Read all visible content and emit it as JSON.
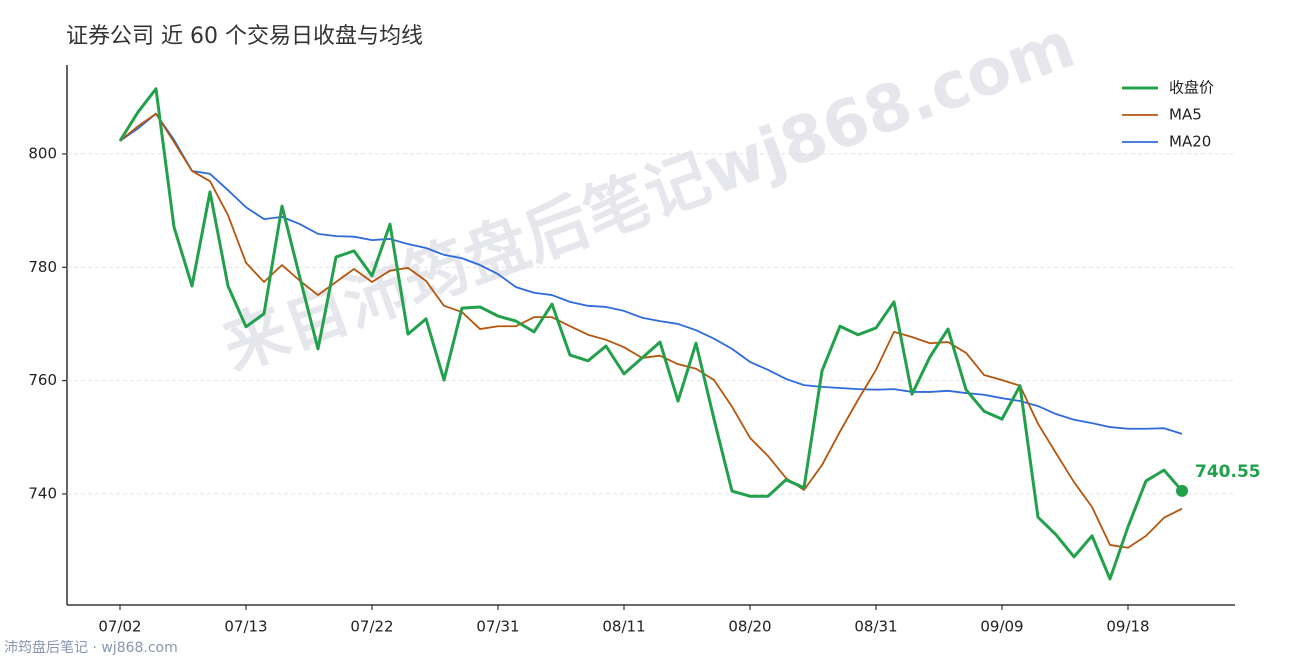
{
  "chart_data": {
    "type": "line",
    "title": "证券公司 近 60 个交易日收盘与均线",
    "watermark": "来自沛筠盘后笔记wj868.com",
    "footer": "沛筠盘后笔记 · wj868.com",
    "categories": [
      "07/02",
      null,
      null,
      null,
      null,
      null,
      null,
      "07/13",
      null,
      null,
      null,
      null,
      null,
      null,
      "07/22",
      null,
      null,
      null,
      null,
      null,
      null,
      "07/31",
      null,
      null,
      null,
      null,
      null,
      null,
      "08/11",
      null,
      null,
      null,
      null,
      null,
      null,
      "08/20",
      null,
      null,
      null,
      null,
      null,
      null,
      "08/31",
      null,
      null,
      null,
      null,
      null,
      null,
      "09/09",
      null,
      null,
      null,
      null,
      null,
      null,
      "09/18",
      null,
      null,
      null
    ],
    "series": [
      {
        "name": "收盘价",
        "color": "#22a04b",
        "width": 3,
        "end_dot": true,
        "values": [
          802.3,
          807.4,
          811.5,
          787.1,
          776.7,
          793.3,
          776.7,
          769.5,
          771.8,
          790.8,
          778.1,
          765.6,
          781.8,
          782.9,
          778.5,
          787.6,
          768.2,
          770.9,
          760.1,
          772.8,
          773.0,
          771.4,
          770.5,
          768.6,
          773.5,
          764.5,
          763.5,
          766.1,
          761.2,
          764.0,
          766.8,
          756.4,
          766.6,
          753.2,
          740.5,
          739.6,
          739.6,
          742.5,
          741.1,
          761.7,
          769.6,
          768.1,
          769.3,
          773.9,
          757.6,
          764.2,
          769.1,
          758.4,
          754.6,
          753.2,
          759.1,
          735.9,
          732.8,
          728.9,
          732.6,
          725.0,
          734.2,
          742.3,
          744.2,
          740.55
        ]
      },
      {
        "name": "MA5",
        "color": "#b5560f",
        "width": 1.8,
        "values": [
          802.3,
          804.9,
          807.1,
          802.1,
          797.0,
          795.2,
          789.2,
          780.8,
          777.4,
          780.4,
          777.6,
          775.1,
          777.4,
          779.7,
          777.4,
          779.4,
          779.9,
          777.6,
          773.2,
          772.1,
          769.1,
          769.6,
          769.6,
          771.2,
          771.2,
          769.6,
          768.1,
          767.2,
          765.9,
          764.0,
          764.4,
          762.9,
          762.1,
          760.1,
          755.4,
          749.9,
          746.7,
          742.8,
          740.7,
          745.1,
          751.0,
          756.6,
          761.9,
          768.6,
          767.7,
          766.6,
          766.8,
          764.9,
          761.0,
          760.1,
          759.1,
          752.4,
          747.2,
          742.1,
          737.7,
          731.0,
          730.5,
          732.6,
          735.8,
          737.4
        ]
      },
      {
        "name": "MA20",
        "color": "#2f6bdb",
        "width": 1.8,
        "values": [
          802.3,
          804.5,
          807.1,
          802.5,
          797.0,
          796.5,
          793.6,
          790.6,
          788.5,
          788.9,
          787.6,
          785.9,
          785.5,
          785.4,
          784.8,
          785.0,
          784.1,
          783.4,
          782.2,
          781.6,
          780.4,
          778.8,
          776.5,
          775.5,
          775.1,
          773.9,
          773.2,
          773.0,
          772.3,
          771.1,
          770.5,
          770.0,
          768.9,
          767.4,
          765.6,
          763.3,
          761.9,
          760.3,
          759.2,
          758.9,
          758.7,
          758.5,
          758.4,
          758.5,
          758.0,
          758.0,
          758.2,
          757.8,
          757.5,
          756.9,
          756.4,
          755.5,
          754.1,
          753.1,
          752.5,
          751.8,
          751.5,
          751.5,
          751.6,
          750.6
        ]
      }
    ],
    "ylim": [
      720.4,
      815.7
    ],
    "yticks": [
      740,
      760,
      780,
      800
    ],
    "grid": true,
    "legend": "upper right"
  }
}
